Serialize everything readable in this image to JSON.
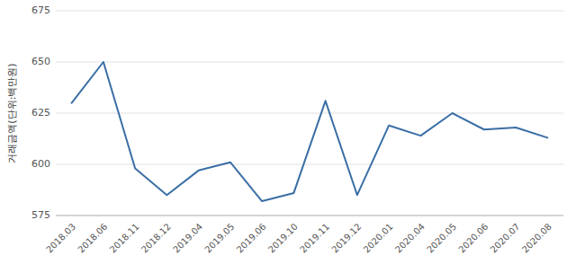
{
  "chart_data": {
    "type": "line",
    "ylabel": "거래금액(단위:백만원)",
    "categories": [
      "2018.03",
      "2018.06",
      "2018.11",
      "2018.12",
      "2019.04",
      "2019.05",
      "2019.06",
      "2019.10",
      "2019.11",
      "2019.12",
      "2020.01",
      "2020.04",
      "2020.05",
      "2020.06",
      "2020.07",
      "2020.08"
    ],
    "values": [
      630,
      650,
      598,
      585,
      597,
      601,
      582,
      586,
      631,
      585,
      619,
      614,
      625,
      617,
      618,
      613
    ],
    "color": "#3a6ea5",
    "ylim": [
      575,
      675
    ],
    "yticks": [
      575,
      600,
      625,
      650,
      675
    ],
    "grid": true
  }
}
